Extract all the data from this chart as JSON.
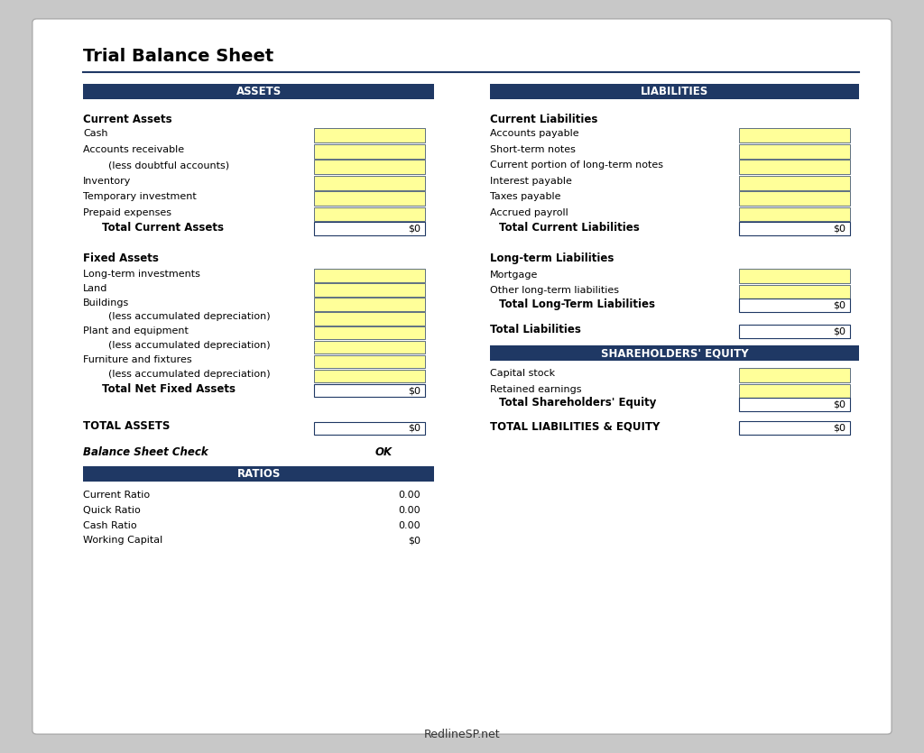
{
  "title": "Trial Balance Sheet",
  "bg_color": "#c8c8c8",
  "paper_color": "#ffffff",
  "header_bg": "#1f3864",
  "header_text_color": "#ffffff",
  "yellow_fill": "#ffff99",
  "white_fill": "#ffffff",
  "border_color": "#1f3864",
  "assets_header": "ASSETS",
  "liabilities_header": "LIABILITIES",
  "shareholders_header": "SHAREHOLDERS' EQUITY",
  "ratios_header": "RATIOS",
  "current_assets_label": "Current Assets",
  "current_assets_items": [
    "Cash",
    "Accounts receivable",
    "        (less doubtful accounts)",
    "Inventory",
    "Temporary investment",
    "Prepaid expenses"
  ],
  "total_current_assets": "Total Current Assets",
  "total_current_assets_val": "$0",
  "fixed_assets_label": "Fixed Assets",
  "fixed_assets_items": [
    "Long-term investments",
    "Land",
    "Buildings",
    "        (less accumulated depreciation)",
    "Plant and equipment",
    "        (less accumulated depreciation)",
    "Furniture and fixtures",
    "        (less accumulated depreciation)"
  ],
  "total_fixed_assets": "Total Net Fixed Assets",
  "total_fixed_assets_val": "$0",
  "total_assets_label": "TOTAL ASSETS",
  "total_assets_val": "$0",
  "balance_check_label": "Balance Sheet Check",
  "balance_check_val": "OK",
  "current_liabilities_label": "Current Liabilities",
  "current_liabilities_items": [
    "Accounts payable",
    "Short-term notes",
    "Current portion of long-term notes",
    "Interest payable",
    "Taxes payable",
    "Accrued payroll"
  ],
  "total_current_liabilities": "Total Current Liabilities",
  "total_current_liabilities_val": "$0",
  "longterm_liabilities_label": "Long-term Liabilities",
  "longterm_liabilities_items": [
    "Mortgage",
    "Other long-term liabilities"
  ],
  "total_longterm_liabilities": "Total Long-Term Liabilities",
  "total_longterm_liabilities_val": "$0",
  "total_liabilities_label": "Total Liabilities",
  "total_liabilities_val": "$0",
  "shareholders_items": [
    "Capital stock",
    "Retained earnings"
  ],
  "total_shareholders": "Total Shareholders' Equity",
  "total_shareholders_val": "$0",
  "total_liabilities_equity_label": "TOTAL LIABILITIES & EQUITY",
  "total_liabilities_equity_val": "$0",
  "ratios_items": [
    [
      "Current Ratio",
      "0.00"
    ],
    [
      "Quick Ratio",
      "0.00"
    ],
    [
      "Cash Ratio",
      "0.00"
    ],
    [
      "Working Capital",
      "$0"
    ]
  ],
  "footer_text": "RedlineSP.net"
}
